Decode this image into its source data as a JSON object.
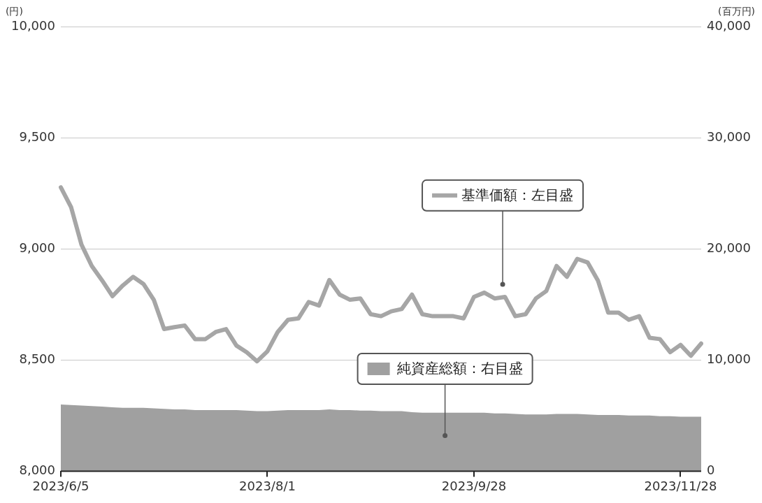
{
  "chart_data": {
    "type": "line",
    "ylabel": "(円)",
    "y2label": "(百万円)",
    "categories": [
      "2023/6/5",
      null,
      null,
      null,
      null,
      null,
      null,
      null,
      null,
      null,
      null,
      null,
      null,
      null,
      null,
      null,
      null,
      null,
      null,
      null,
      "2023/8/1",
      null,
      null,
      null,
      null,
      null,
      null,
      null,
      null,
      null,
      null,
      null,
      null,
      null,
      null,
      null,
      null,
      null,
      null,
      null,
      "2023/9/28",
      null,
      null,
      null,
      null,
      null,
      null,
      null,
      null,
      null,
      null,
      null,
      null,
      null,
      null,
      null,
      null,
      null,
      null,
      null,
      "2023/11/28",
      null,
      null
    ],
    "series": [
      {
        "name": "純資産総額：右目盛",
        "type": "area",
        "axis": "y2",
        "color": "#a0a0a0",
        "values": [
          6000,
          5950,
          5900,
          5850,
          5800,
          5750,
          5700,
          5700,
          5700,
          5650,
          5600,
          5550,
          5550,
          5500,
          5500,
          5500,
          5500,
          5500,
          5450,
          5400,
          5400,
          5450,
          5500,
          5500,
          5500,
          5500,
          5550,
          5500,
          5500,
          5450,
          5450,
          5400,
          5400,
          5400,
          5300,
          5250,
          5250,
          5250,
          5250,
          5250,
          5250,
          5250,
          5200,
          5200,
          5150,
          5100,
          5100,
          5100,
          5150,
          5150,
          5150,
          5100,
          5050,
          5050,
          5050,
          5000,
          5000,
          5000,
          4950,
          4950,
          4900,
          4900,
          4900
        ]
      },
      {
        "name": "基準価額：左目盛",
        "axis": "y",
        "color": "#a6a6a6",
        "values": [
          9277,
          9187,
          9019,
          8923,
          8858,
          8787,
          8835,
          8874,
          8842,
          8771,
          8639,
          8648,
          8655,
          8594,
          8594,
          8626,
          8639,
          8565,
          8535,
          8494,
          8539,
          8626,
          8681,
          8687,
          8761,
          8745,
          8860,
          8794,
          8771,
          8777,
          8706,
          8697,
          8719,
          8729,
          8794,
          8706,
          8697,
          8697,
          8697,
          8687,
          8784,
          8803,
          8777,
          8784,
          8697,
          8706,
          8777,
          8810,
          8923,
          8874,
          8955,
          8939,
          8858,
          8713,
          8713,
          8681,
          8697,
          8600,
          8594,
          8535,
          8568,
          8519,
          8574
        ]
      }
    ],
    "ylim": [
      8000,
      10000
    ],
    "yticks": [
      {
        "value": 8000,
        "label": "8,000"
      },
      {
        "value": 8500,
        "label": "8,500"
      },
      {
        "value": 9000,
        "label": "9,000"
      },
      {
        "value": 9500,
        "label": "9,500"
      },
      {
        "value": 10000,
        "label": "10,000"
      }
    ],
    "y2lim": [
      0,
      40000
    ],
    "y2ticks": [
      0,
      {
        "value": 10000,
        "label": "10,000"
      },
      {
        "value": 20000,
        "label": "20,000"
      },
      {
        "value": 30000,
        "label": "30,000"
      },
      {
        "value": 40000,
        "label": "40,000"
      }
    ],
    "grid": "y",
    "legend": "center",
    "marker": "none",
    "line_style": "solid"
  }
}
